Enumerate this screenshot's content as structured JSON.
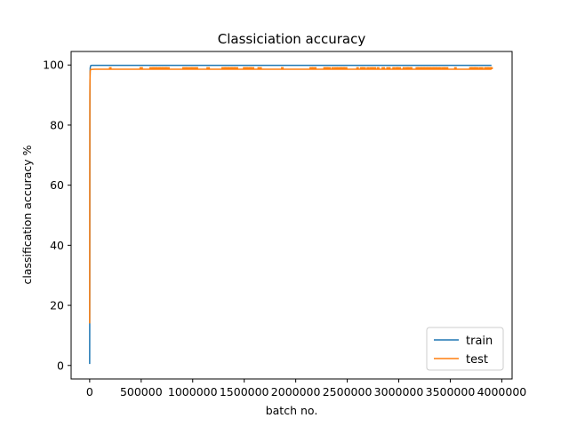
{
  "chart_data": {
    "type": "line",
    "title": "Classiciation accuracy",
    "xlabel": "batch no.",
    "ylabel": "classification accuracy %",
    "xlim": [
      -180000,
      4100000
    ],
    "ylim": [
      -4.5,
      104.5
    ],
    "xticks": [
      0,
      500000,
      1000000,
      1500000,
      2000000,
      2500000,
      3000000,
      3500000,
      4000000
    ],
    "yticks": [
      0,
      20,
      40,
      60,
      80,
      100
    ],
    "grid": false,
    "legend": {
      "placement": "lower-right"
    },
    "series": [
      {
        "name": "train",
        "color": "#1f77b4",
        "x": [
          0,
          500,
          1000,
          2000,
          3000,
          5000,
          8000,
          10000,
          20000,
          100000,
          500000,
          1000000,
          1500000,
          2000000,
          2500000,
          3000000,
          3500000,
          3900000
        ],
        "y": [
          0.5,
          14,
          30,
          82,
          95,
          99,
          99.5,
          99.8,
          99.9,
          99.9,
          99.9,
          99.9,
          99.9,
          99.9,
          99.9,
          99.9,
          99.9,
          99.9
        ]
      },
      {
        "name": "test",
        "color": "#ff7f0e",
        "x": [
          0,
          500,
          1000,
          2000,
          3000,
          5000,
          10000,
          50000,
          500000,
          1000000,
          1500000,
          2000000,
          2500000,
          3000000,
          3500000,
          3900000
        ],
        "y": [
          14,
          30,
          60,
          90,
          95,
          98,
          98.5,
          98.6,
          98.6,
          98.6,
          98.6,
          98.6,
          98.6,
          98.6,
          98.6,
          98.6
        ],
        "spikes_to": 99.3,
        "spike_x": [
          200000,
          500000,
          600000,
          620000,
          640000,
          660000,
          680000,
          700000,
          720000,
          740000,
          760000,
          920000,
          950000,
          980000,
          1010000,
          1040000,
          1150000,
          1300000,
          1320000,
          1340000,
          1360000,
          1380000,
          1400000,
          1420000,
          1500000,
          1520000,
          1540000,
          1560000,
          1580000,
          1650000,
          1870000,
          2150000,
          2180000,
          2280000,
          2300000,
          2320000,
          2360000,
          2390000,
          2420000,
          2440000,
          2460000,
          2480000,
          2600000,
          2640000,
          2660000,
          2700000,
          2730000,
          2760000,
          2800000,
          2850000,
          2900000,
          2950000,
          2980000,
          3000000,
          3050000,
          3080000,
          3100000,
          3120000,
          3180000,
          3200000,
          3220000,
          3240000,
          3260000,
          3280000,
          3300000,
          3320000,
          3340000,
          3360000,
          3380000,
          3400000,
          3430000,
          3460000,
          3550000,
          3700000,
          3720000,
          3740000,
          3760000,
          3800000,
          3840000,
          3860000,
          3880000,
          3900000
        ]
      }
    ]
  }
}
